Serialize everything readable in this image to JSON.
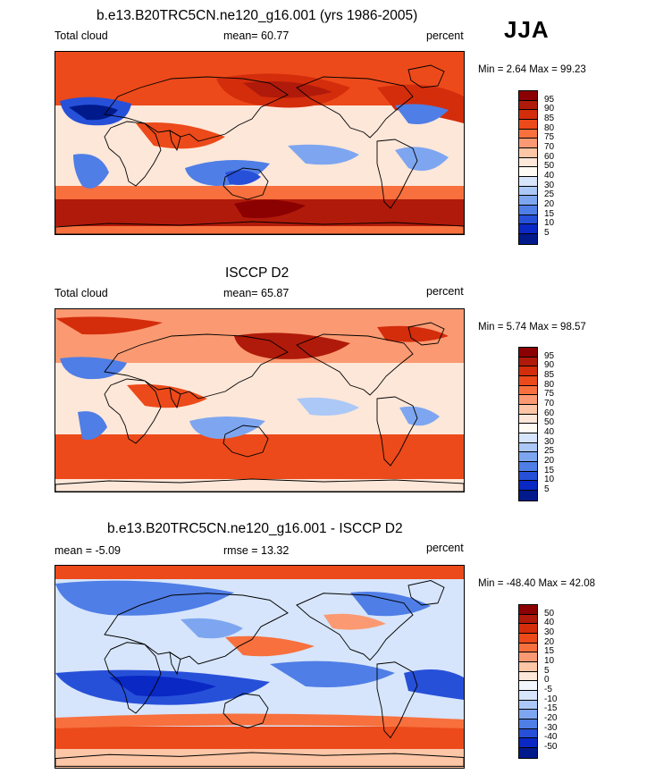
{
  "season_label": "JJA",
  "panels": [
    {
      "title": "b.e13.B20TRC5CN.ne120_g16.001 (yrs 1986-2005)",
      "left_label": "Total cloud",
      "center_label": "mean=  60.77",
      "right_label": "percent",
      "minmax": "Min =   2.64 Max =  99.23",
      "colorbar_labels": [
        "95",
        "90",
        "85",
        "80",
        "75",
        "70",
        "60",
        "50",
        "40",
        "30",
        "25",
        "20",
        "15",
        "10",
        "5"
      ],
      "colorbar_colors": [
        "#8b0000",
        "#b01a0a",
        "#d42d0c",
        "#ec4a1a",
        "#f7703d",
        "#fb9a72",
        "#fdc6a6",
        "#fde7d9",
        "#fffaf4",
        "#d6e5fb",
        "#acc8f7",
        "#7ea6f0",
        "#4f7ee6",
        "#2750d9",
        "#0a28c4",
        "#001a8c"
      ],
      "scheme": "model"
    },
    {
      "title": "ISCCP D2",
      "left_label": "Total cloud",
      "center_label": "mean=  65.87",
      "right_label": "percent",
      "minmax": "Min =   5.74 Max =  98.57",
      "colorbar_labels": [
        "95",
        "90",
        "85",
        "80",
        "75",
        "70",
        "60",
        "50",
        "40",
        "30",
        "25",
        "20",
        "15",
        "10",
        "5"
      ],
      "colorbar_colors": [
        "#8b0000",
        "#b01a0a",
        "#d42d0c",
        "#ec4a1a",
        "#f7703d",
        "#fb9a72",
        "#fdc6a6",
        "#fde7d9",
        "#fffaf4",
        "#d6e5fb",
        "#acc8f7",
        "#7ea6f0",
        "#4f7ee6",
        "#2750d9",
        "#0a28c4",
        "#001a8c"
      ],
      "scheme": "obs"
    },
    {
      "title": "b.e13.B20TRC5CN.ne120_g16.001 - ISCCP D2",
      "left_label": "mean =  -5.09",
      "center_label": "rmse =  13.32",
      "right_label": "percent",
      "minmax": "Min = -48.40 Max =  42.08",
      "colorbar_labels": [
        "50",
        "40",
        "30",
        "20",
        "15",
        "10",
        "5",
        "0",
        "-5",
        "-10",
        "-15",
        "-20",
        "-30",
        "-40",
        "-50"
      ],
      "colorbar_colors": [
        "#8b0000",
        "#b01a0a",
        "#d42d0c",
        "#ec4a1a",
        "#f7703d",
        "#fb9a72",
        "#fdc6a6",
        "#fde7d9",
        "#f2f6fd",
        "#d6e5fb",
        "#acc8f7",
        "#7ea6f0",
        "#4f7ee6",
        "#2750d9",
        "#0a28c4",
        "#001a8c"
      ],
      "scheme": "diff"
    }
  ]
}
